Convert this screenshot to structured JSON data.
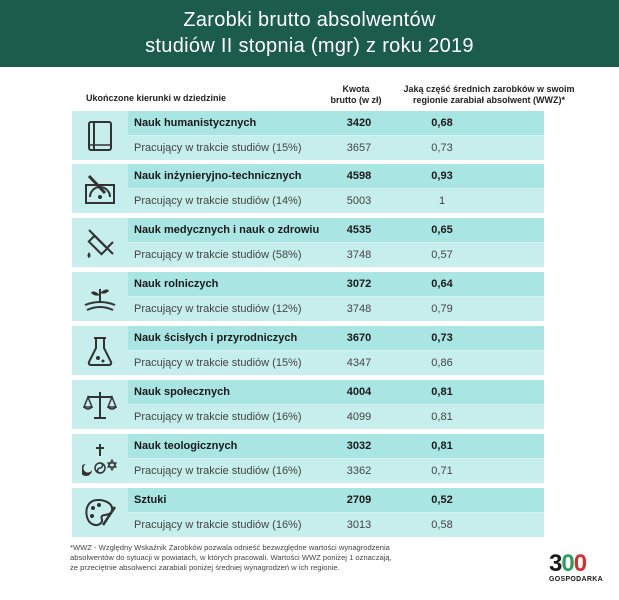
{
  "title_line1": "Zarobki brutto absolwentów",
  "title_line2": "studiów II stopnia (mgr) z roku 2019",
  "headers": {
    "field": "Ukończone kierunki w dziedzinie",
    "salary_line1": "Kwota",
    "salary_line2": "brutto (w zł)",
    "wwz_line1": "Jaką część średnich zarobków w swoim",
    "wwz_line2": "regionie zarabiał absolwent (WWZ)*"
  },
  "chart_data": {
    "type": "table",
    "columns": [
      "Ukończone kierunki w dziedzinie",
      "Kwota brutto (w zł)",
      "Jaką część średnich zarobków w swoim regionie zarabiał absolwent (WWZ)*"
    ],
    "rows": [
      {
        "icon": "book-icon",
        "name": "Nauk humanistycznych",
        "salary": "3420",
        "wwz": "0,68",
        "sub": "Pracujący w trakcie studiów (15%)",
        "sub_salary": "3657",
        "sub_wwz": "0,73"
      },
      {
        "icon": "protractor-icon",
        "name": "Nauk inżynieryjno-technicznych",
        "salary": "4598",
        "wwz": "0,93",
        "sub": "Pracujący w trakcie studiów (14%)",
        "sub_salary": "5003",
        "sub_wwz": "1"
      },
      {
        "icon": "syringe-icon",
        "name": "Nauk medycznych i nauk o zdrowiu",
        "salary": "4535",
        "wwz": "0,65",
        "sub": "Pracujący w trakcie studiów (58%)",
        "sub_salary": "3748",
        "sub_wwz": "0,57"
      },
      {
        "icon": "plant-icon",
        "name": "Nauk rolniczych",
        "salary": "3072",
        "wwz": "0,64",
        "sub": "Pracujący w trakcie studiów (12%)",
        "sub_salary": "3748",
        "sub_wwz": "0,79"
      },
      {
        "icon": "flask-icon",
        "name": "Nauk ścisłych i przyrodniczych",
        "salary": "3670",
        "wwz": "0,73",
        "sub": "Pracujący w trakcie studiów (15%)",
        "sub_salary": "4347",
        "sub_wwz": "0,86"
      },
      {
        "icon": "scales-icon",
        "name": "Nauk społecznych",
        "salary": "4004",
        "wwz": "0,81",
        "sub": "Pracujący w trakcie studiów (16%)",
        "sub_salary": "4099",
        "sub_wwz": "0,81"
      },
      {
        "icon": "religious-symbols-icon",
        "name": "Nauk teologicznych",
        "salary": "3032",
        "wwz": "0,81",
        "sub": "Pracujący w trakcie studiów (16%)",
        "sub_salary": "3362",
        "sub_wwz": "0,71"
      },
      {
        "icon": "palette-icon",
        "name": "Sztuki",
        "salary": "2709",
        "wwz": "0,52",
        "sub": "Pracujący w trakcie studiów (16%)",
        "sub_salary": "3013",
        "sub_wwz": "0,58"
      }
    ]
  },
  "footnote_line1": "*WWZ - Względny Wskaźnik Zarobków pozwala odnieść bezwzględne wartości wynagrodzenia",
  "footnote_line2": "absolwentów do sytuacji w powiatach, w których pracowali. Wartości WWZ poniżej 1 oznaczają,",
  "footnote_line3": "że przeciętnie absolwenci zarabiali poniżej średniej wynagrodzeń w ich regionie.",
  "logo": {
    "number": "300",
    "brand": "GOSPODARKA"
  },
  "colors": {
    "header": "#1b5c4c",
    "row_main": "#a9e5e2",
    "row_sub": "#c6eeec"
  }
}
